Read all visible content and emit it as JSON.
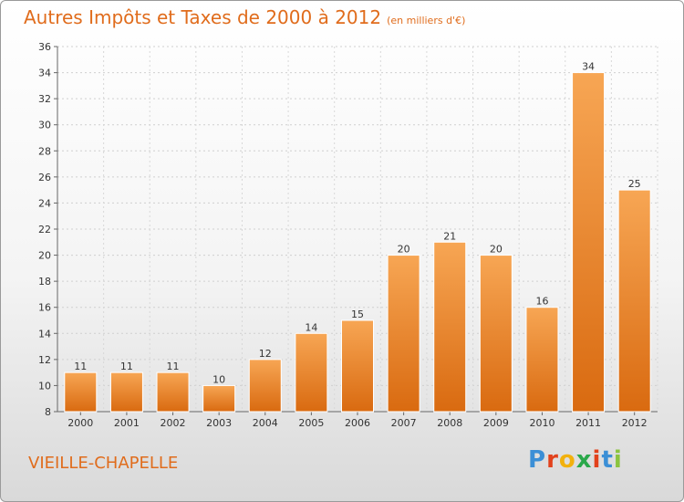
{
  "header": {
    "title": "Autres Impôts et Taxes de 2000 à 2012",
    "subtitle": "(en milliers d'€)"
  },
  "footer": {
    "commune": "VIEILLE-CHAPELLE",
    "brand_letters": [
      "P",
      "r",
      "o",
      "x",
      "i",
      "t",
      "i"
    ]
  },
  "colors": {
    "title": "#e06c1c",
    "bar_top": "#f7a654",
    "bar_bottom": "#d96a10",
    "brand": [
      "#3b8fd6",
      "#e2421d",
      "#f2b10d",
      "#2aa84a",
      "#e2421d",
      "#3b8fd6",
      "#8bc43f"
    ]
  },
  "chart_data": {
    "type": "bar",
    "title": "Autres Impôts et Taxes de 2000 à 2012",
    "subtitle": "(en milliers d'€)",
    "xlabel": "",
    "ylabel": "",
    "categories": [
      "2000",
      "2001",
      "2002",
      "2003",
      "2004",
      "2005",
      "2006",
      "2007",
      "2008",
      "2009",
      "2010",
      "2011",
      "2012"
    ],
    "values": [
      11,
      11,
      11,
      10,
      12,
      14,
      15,
      20,
      21,
      20,
      16,
      34,
      25
    ],
    "ylim": [
      8,
      36
    ],
    "yticks": [
      8,
      10,
      12,
      14,
      16,
      18,
      20,
      22,
      24,
      26,
      28,
      30,
      32,
      34,
      36
    ],
    "grid": true,
    "data_labels": true
  }
}
